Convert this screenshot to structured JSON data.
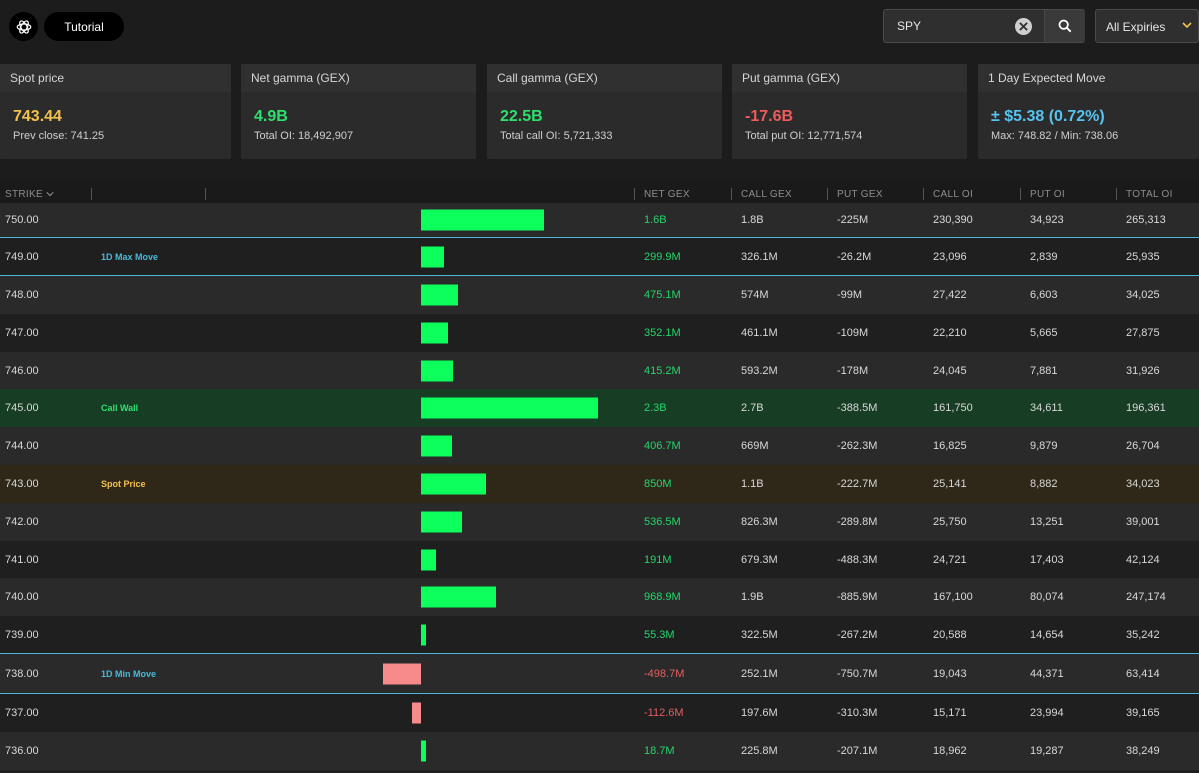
{
  "header": {
    "tutorial_label": "Tutorial",
    "search_value": "SPY",
    "expiry_label": "All Expiries"
  },
  "cards": [
    {
      "title": "Spot price",
      "value": "743.44",
      "sub": "Prev close: 741.25",
      "color": "#f2c14e"
    },
    {
      "title": "Net gamma (GEX)",
      "value": "4.9B",
      "sub": "Total OI: 18,492,907",
      "color": "#2fe06e"
    },
    {
      "title": "Call gamma (GEX)",
      "value": "22.5B",
      "sub": "Total call OI: 5,721,333",
      "color": "#2fe06e"
    },
    {
      "title": "Put gamma (GEX)",
      "value": "-17.6B",
      "sub": "Total put OI: 12,771,574",
      "color": "#ef5b5b"
    },
    {
      "title": "1 Day Expected Move",
      "value": "± $5.38 (0.72%)",
      "sub": "Max: 748.82 / Min: 738.06",
      "color": "#57c3f0"
    }
  ],
  "table": {
    "columns": {
      "strike": "STRIKE",
      "net_gex": "NET GEX",
      "call_gex": "CALL GEX",
      "put_gex": "PUT GEX",
      "call_oi": "CALL OI",
      "put_oi": "PUT OI",
      "total_oi": "TOTAL OI"
    },
    "colors": {
      "positive_bar": "#0cff5a",
      "negative_bar": "#f78a8a",
      "max_move": "#4bb8d6",
      "call_wall": "#2fe06e",
      "spot": "#f2c14e"
    },
    "rows": [
      {
        "strike": "750.00",
        "tag": "",
        "net_gex": "1.6B",
        "net_value": 1.6,
        "call_gex": "1.8B",
        "put_gex": "-225M",
        "call_oi": "230,390",
        "put_oi": "34,923",
        "total_oi": "265,313"
      },
      {
        "strike": "749.00",
        "tag": "1D Max Move",
        "net_gex": "299.9M",
        "net_value": 0.2999,
        "call_gex": "326.1M",
        "put_gex": "-26.2M",
        "call_oi": "23,096",
        "put_oi": "2,839",
        "total_oi": "25,935"
      },
      {
        "strike": "748.00",
        "tag": "",
        "net_gex": "475.1M",
        "net_value": 0.4751,
        "call_gex": "574M",
        "put_gex": "-99M",
        "call_oi": "27,422",
        "put_oi": "6,603",
        "total_oi": "34,025"
      },
      {
        "strike": "747.00",
        "tag": "",
        "net_gex": "352.1M",
        "net_value": 0.3521,
        "call_gex": "461.1M",
        "put_gex": "-109M",
        "call_oi": "22,210",
        "put_oi": "5,665",
        "total_oi": "27,875"
      },
      {
        "strike": "746.00",
        "tag": "",
        "net_gex": "415.2M",
        "net_value": 0.4152,
        "call_gex": "593.2M",
        "put_gex": "-178M",
        "call_oi": "24,045",
        "put_oi": "7,881",
        "total_oi": "31,926"
      },
      {
        "strike": "745.00",
        "tag": "Call Wall",
        "net_gex": "2.3B",
        "net_value": 2.3,
        "call_gex": "2.7B",
        "put_gex": "-388.5M",
        "call_oi": "161,750",
        "put_oi": "34,611",
        "total_oi": "196,361"
      },
      {
        "strike": "744.00",
        "tag": "",
        "net_gex": "406.7M",
        "net_value": 0.4067,
        "call_gex": "669M",
        "put_gex": "-262.3M",
        "call_oi": "16,825",
        "put_oi": "9,879",
        "total_oi": "26,704"
      },
      {
        "strike": "743.00",
        "tag": "Spot Price",
        "net_gex": "850M",
        "net_value": 0.85,
        "call_gex": "1.1B",
        "put_gex": "-222.7M",
        "call_oi": "25,141",
        "put_oi": "8,882",
        "total_oi": "34,023"
      },
      {
        "strike": "742.00",
        "tag": "",
        "net_gex": "536.5M",
        "net_value": 0.5365,
        "call_gex": "826.3M",
        "put_gex": "-289.8M",
        "call_oi": "25,750",
        "put_oi": "13,251",
        "total_oi": "39,001"
      },
      {
        "strike": "741.00",
        "tag": "",
        "net_gex": "191M",
        "net_value": 0.191,
        "call_gex": "679.3M",
        "put_gex": "-488.3M",
        "call_oi": "24,721",
        "put_oi": "17,403",
        "total_oi": "42,124"
      },
      {
        "strike": "740.00",
        "tag": "",
        "net_gex": "968.9M",
        "net_value": 0.9689,
        "call_gex": "1.9B",
        "put_gex": "-885.9M",
        "call_oi": "167,100",
        "put_oi": "80,074",
        "total_oi": "247,174"
      },
      {
        "strike": "739.00",
        "tag": "",
        "net_gex": "55.3M",
        "net_value": 0.0553,
        "call_gex": "322.5M",
        "put_gex": "-267.2M",
        "call_oi": "20,588",
        "put_oi": "14,654",
        "total_oi": "35,242"
      },
      {
        "strike": "738.00",
        "tag": "1D Min Move",
        "net_gex": "-498.7M",
        "net_value": -0.4987,
        "call_gex": "252.1M",
        "put_gex": "-750.7M",
        "call_oi": "19,043",
        "put_oi": "44,371",
        "total_oi": "63,414"
      },
      {
        "strike": "737.00",
        "tag": "",
        "net_gex": "-112.6M",
        "net_value": -0.1126,
        "call_gex": "197.6M",
        "put_gex": "-310.3M",
        "call_oi": "15,171",
        "put_oi": "23,994",
        "total_oi": "39,165"
      },
      {
        "strike": "736.00",
        "tag": "",
        "net_gex": "18.7M",
        "net_value": 0.0187,
        "call_gex": "225.8M",
        "put_gex": "-207.1M",
        "call_oi": "18,962",
        "put_oi": "19,287",
        "total_oi": "38,249"
      }
    ]
  }
}
